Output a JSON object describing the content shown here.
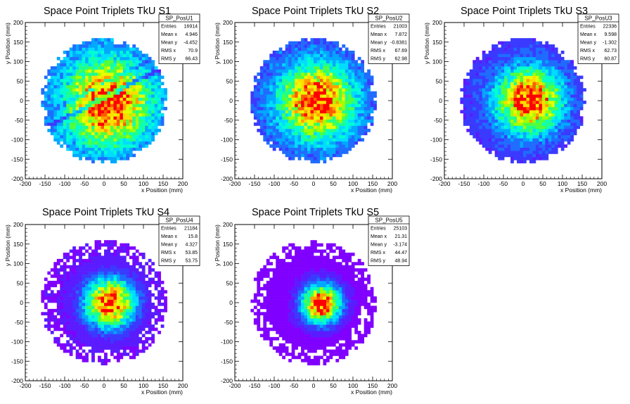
{
  "colors": {
    "palette": [
      "#8000ff",
      "#5a1cff",
      "#3a3aff",
      "#1f6cff",
      "#00a8ff",
      "#00dcff",
      "#00ffd0",
      "#1eff8c",
      "#50ff3c",
      "#a0ff00",
      "#e6ff00",
      "#ffdc00",
      "#ffa000",
      "#ff5a00",
      "#ff0000"
    ],
    "axis": "#000000",
    "background": "#ffffff"
  },
  "chart_data": [
    {
      "type": "heatmap",
      "title": "Space Point Triplets TkU S1",
      "xlabel": "x Position (mm)",
      "ylabel": "y Position (mm)",
      "xlim": [
        -200,
        200
      ],
      "ylim": [
        -200,
        200
      ],
      "xticks": [
        -200,
        -150,
        -100,
        -50,
        0,
        50,
        100,
        150,
        200
      ],
      "yticks": [
        -200,
        -150,
        -100,
        -50,
        0,
        50,
        100,
        150,
        200
      ],
      "grid": false,
      "stats": {
        "name": "SP_PosU1",
        "rows": [
          {
            "label": "Entries",
            "value": "16914"
          },
          {
            "label": "Mean x",
            "value": "4.946"
          },
          {
            "label": "Mean y",
            "value": "-4.452"
          },
          {
            "label": "RMS x",
            "value": "70.9"
          },
          {
            "label": "RMS y",
            "value": "66.43"
          }
        ]
      },
      "distribution": {
        "radius": 160,
        "cx": 10,
        "cy": -5,
        "sigma": 70,
        "base": 0.22,
        "stripes": true,
        "ring": false,
        "seed": 11
      }
    },
    {
      "type": "heatmap",
      "title": "Space Point Triplets TkU S2",
      "xlabel": "x Position (mm)",
      "ylabel": "y Position (mm)",
      "xlim": [
        -200,
        200
      ],
      "ylim": [
        -200,
        200
      ],
      "xticks": [
        -200,
        -150,
        -100,
        -50,
        0,
        50,
        100,
        150,
        200
      ],
      "yticks": [
        -200,
        -150,
        -100,
        -50,
        0,
        50,
        100,
        150,
        200
      ],
      "grid": false,
      "stats": {
        "name": "SP_PosU2",
        "rows": [
          {
            "label": "Entries",
            "value": "21003"
          },
          {
            "label": "Mean x",
            "value": "7.872"
          },
          {
            "label": "Mean y",
            "value": "-0.8381"
          },
          {
            "label": "RMS x",
            "value": "67.69"
          },
          {
            "label": "RMS y",
            "value": "62.98"
          }
        ]
      },
      "distribution": {
        "radius": 160,
        "cx": 8,
        "cy": -2,
        "sigma": 62,
        "base": 0.18,
        "stripes": false,
        "ring": false,
        "seed": 23
      }
    },
    {
      "type": "heatmap",
      "title": "Space Point Triplets TkU S3",
      "xlabel": "x Position (mm)",
      "ylabel": "y Position (mm)",
      "xlim": [
        -200,
        200
      ],
      "ylim": [
        -200,
        200
      ],
      "xticks": [
        -200,
        -150,
        -100,
        -50,
        0,
        50,
        100,
        150,
        200
      ],
      "yticks": [
        -200,
        -150,
        -100,
        -50,
        0,
        50,
        100,
        150,
        200
      ],
      "grid": false,
      "stats": {
        "name": "SP_PosU3",
        "rows": [
          {
            "label": "Entries",
            "value": "22336"
          },
          {
            "label": "Mean x",
            "value": "9.598"
          },
          {
            "label": "Mean y",
            "value": "-1.302"
          },
          {
            "label": "RMS x",
            "value": "62.73"
          },
          {
            "label": "RMS y",
            "value": "60.87"
          }
        ]
      },
      "distribution": {
        "radius": 160,
        "cx": 15,
        "cy": 0,
        "sigma": 55,
        "base": 0.14,
        "stripes": false,
        "ring": false,
        "seed": 37
      }
    },
    {
      "type": "heatmap",
      "title": "Space Point Triplets TkU S4",
      "xlabel": "x Position (mm)",
      "ylabel": "y Position (mm)",
      "xlim": [
        -200,
        200
      ],
      "ylim": [
        -200,
        200
      ],
      "xticks": [
        -200,
        -150,
        -100,
        -50,
        0,
        50,
        100,
        150,
        200
      ],
      "yticks": [
        -200,
        -150,
        -100,
        -50,
        0,
        50,
        100,
        150,
        200
      ],
      "grid": false,
      "stats": {
        "name": "SP_PosU4",
        "rows": [
          {
            "label": "Entries",
            "value": "21184"
          },
          {
            "label": "Mean x",
            "value": "15.8"
          },
          {
            "label": "Mean y",
            "value": "4.327"
          },
          {
            "label": "RMS x",
            "value": "53.85"
          },
          {
            "label": "RMS y",
            "value": "53.75"
          }
        ]
      },
      "distribution": {
        "radius": 160,
        "cx": 15,
        "cy": 0,
        "sigma": 42,
        "base": 0.06,
        "stripes": false,
        "ring": true,
        "seed": 41
      }
    },
    {
      "type": "heatmap",
      "title": "Space Point Triplets TkU S5",
      "xlabel": "x Position (mm)",
      "ylabel": "y Position (mm)",
      "xlim": [
        -200,
        200
      ],
      "ylim": [
        -200,
        200
      ],
      "xticks": [
        -200,
        -150,
        -100,
        -50,
        0,
        50,
        100,
        150,
        200
      ],
      "yticks": [
        -200,
        -150,
        -100,
        -50,
        0,
        50,
        100,
        150,
        200
      ],
      "grid": false,
      "stats": {
        "name": "SP_PosU5",
        "rows": [
          {
            "label": "Entries",
            "value": "25103"
          },
          {
            "label": "Mean x",
            "value": "21.31"
          },
          {
            "label": "Mean y",
            "value": "-3.174"
          },
          {
            "label": "RMS x",
            "value": "44.47"
          },
          {
            "label": "RMS y",
            "value": "48.94"
          }
        ]
      },
      "distribution": {
        "radius": 160,
        "cx": 20,
        "cy": -3,
        "sigma": 34,
        "base": 0.03,
        "stripes": false,
        "ring": true,
        "seed": 53
      }
    }
  ]
}
